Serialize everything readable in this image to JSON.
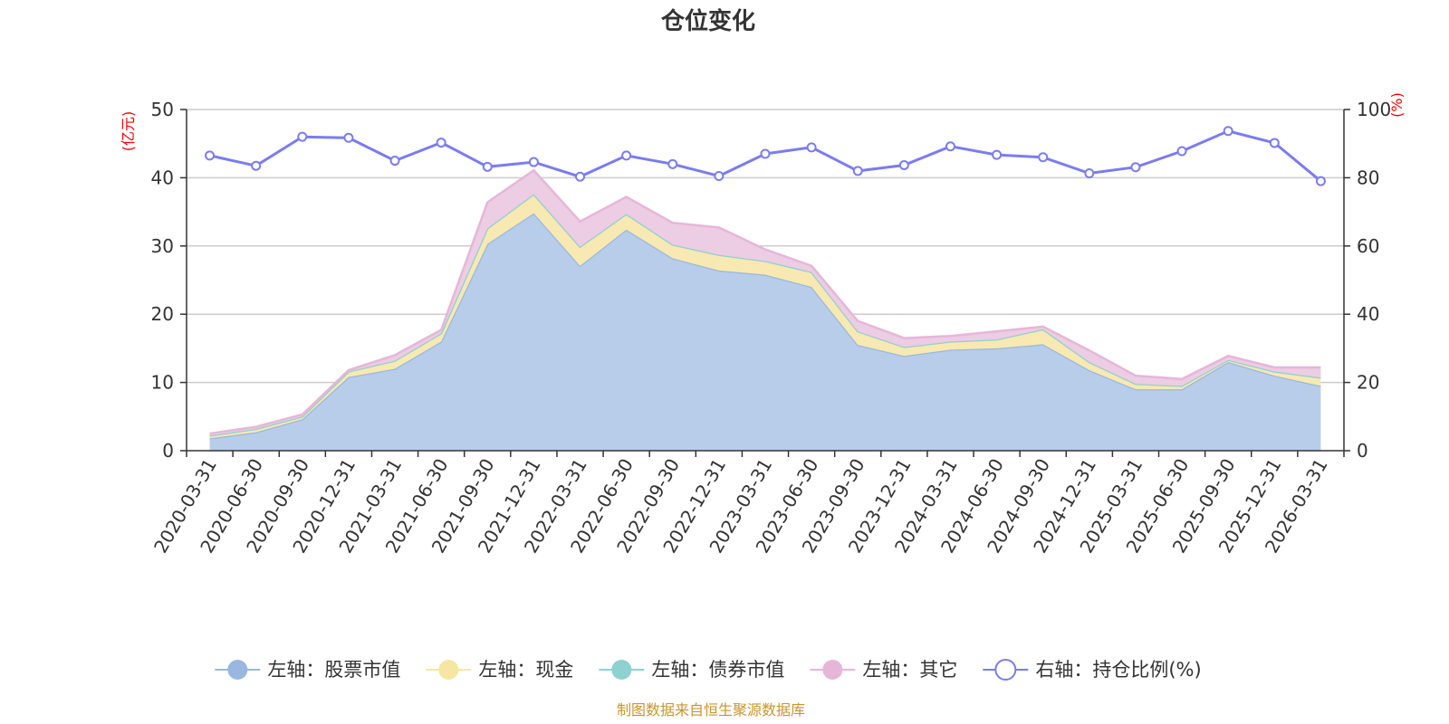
{
  "chart_data": {
    "type": "area",
    "title": "仓位变化",
    "source_note": "制图数据来自恒生聚源数据库",
    "left_axis": {
      "unit": "(亿元)",
      "min": 0,
      "max": 50,
      "ticks": [
        0,
        10,
        20,
        30,
        40,
        50
      ]
    },
    "right_axis": {
      "unit": "(%)",
      "min": 0,
      "max": 100,
      "ticks": [
        0,
        20,
        40,
        60,
        80,
        100
      ]
    },
    "categories": [
      "2020-03-31",
      "2020-06-30",
      "2020-09-30",
      "2020-12-31",
      "2021-03-31",
      "2021-06-30",
      "2021-09-30",
      "2021-12-31",
      "2022-03-31",
      "2022-06-30",
      "2022-09-30",
      "2022-12-31",
      "2023-03-31",
      "2023-06-30",
      "2023-09-30",
      "2023-12-31",
      "2024-03-31",
      "2024-06-30",
      "2024-09-30",
      "2024-12-31",
      "2025-03-31",
      "2025-06-30",
      "2025-09-30",
      "2025-12-31",
      "2026-03-31"
    ],
    "series": [
      {
        "name": "左轴：股票市值",
        "axis": "left",
        "stack": true,
        "color": "#9ab7e0",
        "fill": "#b8cdea",
        "values": [
          1.8,
          2.7,
          4.6,
          10.8,
          12.0,
          16.0,
          30.3,
          34.8,
          27.1,
          32.4,
          28.2,
          26.4,
          25.8,
          24.0,
          15.5,
          13.9,
          14.8,
          15.0,
          15.6,
          11.8,
          9.0,
          9.0,
          13.0,
          11.0,
          9.5
        ]
      },
      {
        "name": "左轴：现金",
        "axis": "left",
        "stack": true,
        "color": "#f7e6a1",
        "fill": "#f7e9b1",
        "values": [
          0.4,
          0.5,
          0.4,
          0.8,
          1.2,
          1.2,
          2.3,
          2.8,
          2.8,
          2.3,
          2.0,
          2.3,
          2.0,
          2.2,
          2.0,
          1.3,
          1.2,
          1.3,
          2.2,
          1.2,
          0.8,
          0.5,
          0.3,
          0.6,
          1.2
        ]
      },
      {
        "name": "左轴：债券市值",
        "axis": "left",
        "stack": true,
        "color": "#8fd0d0",
        "fill": "#a9dcdc",
        "values": [
          0,
          0,
          0,
          0,
          0,
          0,
          0,
          0,
          0,
          0,
          0,
          0,
          0,
          0,
          0,
          0,
          0,
          0,
          0,
          0,
          0,
          0,
          0,
          0,
          0
        ]
      },
      {
        "name": "左轴：其它",
        "axis": "left",
        "stack": true,
        "color": "#e6b6d9",
        "fill": "#eccde3",
        "values": [
          0.3,
          0.3,
          0.3,
          0.2,
          0.8,
          0.5,
          3.8,
          3.5,
          3.7,
          2.5,
          3.2,
          4.0,
          1.7,
          0.9,
          1.5,
          1.3,
          0.8,
          1.2,
          0.4,
          1.7,
          1.2,
          1.0,
          0.6,
          0.6,
          1.5
        ]
      },
      {
        "name": "右轴：持仓比例(%)",
        "axis": "right",
        "stack": false,
        "color": "#7b7cf0",
        "fill": "#ffffff",
        "values": [
          86.5,
          83.5,
          92.0,
          91.7,
          85.0,
          90.3,
          83.2,
          84.6,
          80.3,
          86.5,
          84.0,
          80.5,
          87.0,
          88.9,
          82.0,
          83.7,
          89.2,
          86.7,
          86.0,
          81.3,
          83.1,
          87.8,
          93.7,
          90.2,
          79.0
        ]
      }
    ]
  }
}
